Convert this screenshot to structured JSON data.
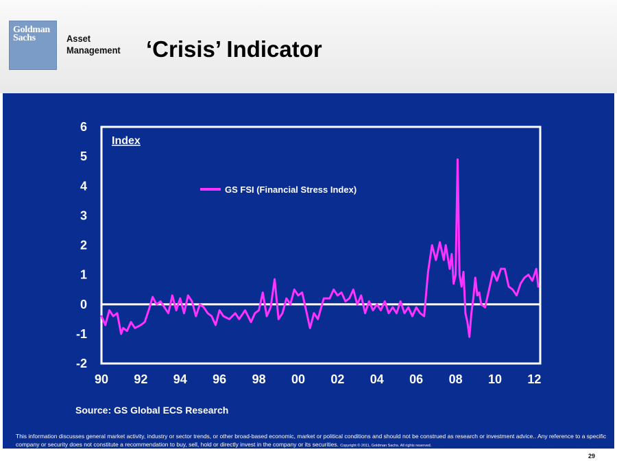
{
  "header": {
    "logo_line1": "Goldman",
    "logo_line2": "Sachs",
    "brand_line1": "Asset",
    "brand_line2": "Management",
    "title": "‘Crisis’ Indicator"
  },
  "footer": {
    "source": "Source: GS Global ECS Research",
    "disclaimer": "This information discusses general market activity, industry or sector trends, or other broad-based economic, market or political conditions and should not be construed as research or investment advice.. Any reference to a specific company or security does not constitute a recommendation to buy, sell, hold or directly invest in the company or its securities.",
    "copyright": "Copyright © 2011, Goldman Sachs. All rights reserved.",
    "page_number": "29"
  },
  "colors": {
    "panel_background": "#0a2d91",
    "axis": "#ffffff",
    "series": "#ff33ff"
  },
  "chart_data": {
    "type": "line",
    "title": "",
    "ylabel": "Index",
    "xlabel": "",
    "x_ticks": [
      "90",
      "92",
      "94",
      "96",
      "98",
      "00",
      "02",
      "04",
      "06",
      "08",
      "10",
      "12"
    ],
    "y_ticks": [
      "6",
      "5",
      "4",
      "3",
      "2",
      "1",
      "0",
      "-1",
      "-2"
    ],
    "xlim": [
      1990,
      2012.3
    ],
    "ylim": [
      -2,
      6
    ],
    "zero_line": true,
    "legend_position": "top-center",
    "series": [
      {
        "name": "GS FSI (Financial Stress Index)",
        "x": [
          1990.0,
          1990.2,
          1990.4,
          1990.6,
          1990.8,
          1991.0,
          1991.1,
          1991.3,
          1991.5,
          1991.7,
          1992.0,
          1992.2,
          1992.4,
          1992.6,
          1992.8,
          1993.0,
          1993.2,
          1993.4,
          1993.6,
          1993.8,
          1994.0,
          1994.2,
          1994.4,
          1994.6,
          1994.8,
          1995.0,
          1995.2,
          1995.4,
          1995.6,
          1995.8,
          1996.0,
          1996.2,
          1996.5,
          1996.8,
          1997.0,
          1997.3,
          1997.6,
          1997.8,
          1998.0,
          1998.2,
          1998.4,
          1998.6,
          1998.8,
          1999.0,
          1999.2,
          1999.4,
          1999.6,
          1999.8,
          2000.0,
          2000.2,
          2000.4,
          2000.6,
          2000.8,
          2001.0,
          2001.3,
          2001.6,
          2001.8,
          2002.0,
          2002.2,
          2002.4,
          2002.6,
          2002.8,
          2003.0,
          2003.2,
          2003.4,
          2003.6,
          2003.8,
          2004.0,
          2004.2,
          2004.4,
          2004.6,
          2004.8,
          2005.0,
          2005.2,
          2005.4,
          2005.6,
          2005.8,
          2006.0,
          2006.2,
          2006.4,
          2006.6,
          2006.8,
          2007.0,
          2007.2,
          2007.4,
          2007.5,
          2007.6,
          2007.7,
          2007.8,
          2007.9,
          2008.0,
          2008.1,
          2008.2,
          2008.3,
          2008.4,
          2008.5,
          2008.6,
          2008.7,
          2008.8,
          2008.9,
          2009.0,
          2009.1,
          2009.2,
          2009.3,
          2009.5,
          2009.7,
          2009.9,
          2010.1,
          2010.3,
          2010.5,
          2010.7,
          2010.9,
          2011.1,
          2011.3,
          2011.5,
          2011.7,
          2011.9,
          2012.1,
          2012.2
        ],
        "values": [
          -0.4,
          -0.7,
          -0.2,
          -0.4,
          -0.3,
          -1.0,
          -0.8,
          -0.9,
          -0.6,
          -0.8,
          -0.7,
          -0.6,
          -0.2,
          0.25,
          0.0,
          0.1,
          -0.1,
          -0.3,
          0.3,
          -0.2,
          0.2,
          -0.3,
          0.3,
          0.1,
          -0.4,
          0.0,
          -0.1,
          -0.3,
          -0.4,
          -0.7,
          -0.2,
          -0.4,
          -0.5,
          -0.3,
          -0.5,
          -0.2,
          -0.6,
          -0.3,
          -0.2,
          0.4,
          -0.4,
          -0.1,
          0.85,
          -0.5,
          -0.3,
          0.2,
          0.0,
          0.5,
          0.3,
          0.4,
          -0.2,
          -0.8,
          -0.3,
          -0.5,
          0.2,
          0.2,
          0.5,
          0.3,
          0.4,
          0.1,
          0.2,
          0.5,
          0.0,
          0.3,
          -0.3,
          0.1,
          -0.2,
          0.0,
          -0.2,
          0.1,
          -0.3,
          -0.1,
          -0.3,
          0.1,
          -0.3,
          -0.1,
          -0.4,
          -0.1,
          -0.3,
          -0.4,
          1.1,
          2.0,
          1.5,
          2.1,
          1.5,
          2.0,
          1.6,
          1.2,
          1.7,
          0.7,
          1.0,
          4.9,
          1.0,
          0.6,
          1.1,
          -0.3,
          -0.6,
          -1.1,
          -0.3,
          0.2,
          0.9,
          0.3,
          0.4,
          0.0,
          -0.1,
          0.5,
          1.1,
          0.8,
          1.2,
          1.2,
          0.6,
          0.5,
          0.3,
          0.7,
          0.9,
          1.0,
          0.8,
          1.2,
          0.6
        ]
      }
    ]
  }
}
